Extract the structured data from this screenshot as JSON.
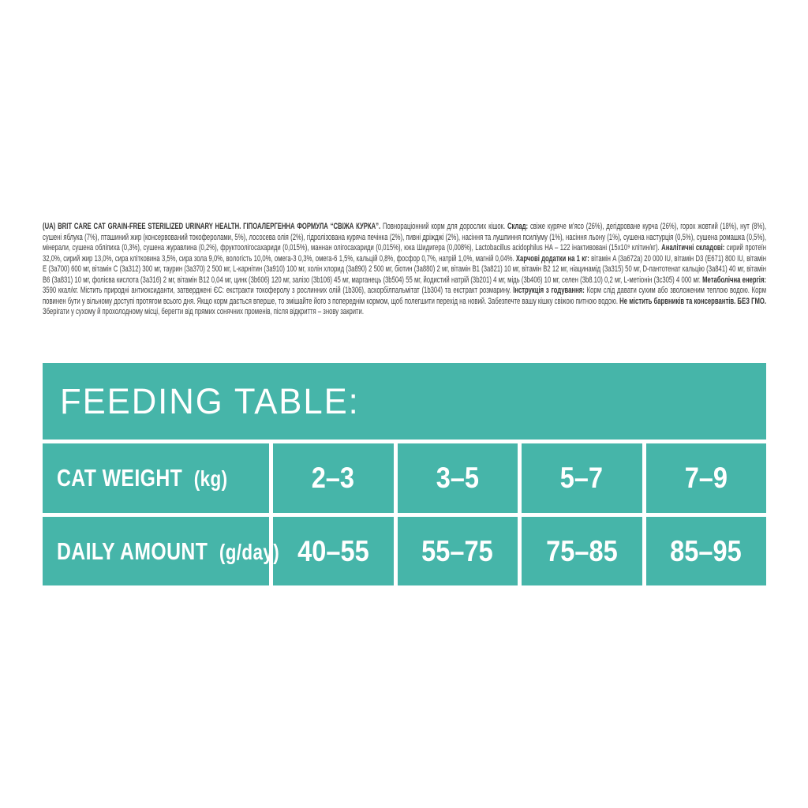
{
  "colors": {
    "teal": "#46b5a9",
    "text": "#3e3e3d",
    "white": "#ffffff"
  },
  "product_description": {
    "segments": [
      {
        "bold": true,
        "text": "(UA) BRIT CARE CAT GRAIN-FREE STERILIZED URINARY HEALTH. ГІПОАЛЕРГЕННА ФОРМУЛА “СВІЖА КУРКА”."
      },
      {
        "bold": false,
        "text": " Повнораціонний корм для дорослих кішок. "
      },
      {
        "bold": true,
        "text": "Склад:"
      },
      {
        "bold": false,
        "text": " свіже куряче м’ясо (26%), дегідроване курча (26%), горох жовтий (18%), нут (8%), сушені яблука (7%), пташиний жир (консервований токоферолами, 5%), лососева олія (2%), гідролізована куряча печінка (2%), пивні дріжджі (2%), насіння та лушпиння псиліуму (1%), насіння льону (1%), сушена настурція (0,5%), сушена ромашка (0,5%), мінерали, сушена обліпиха (0,3%), сушена журавлина (0,2%), фруктоолігосахариди (0,015%), маннан олігосахариди (0,015%), юка Шидигера (0,008%), Lactobacillus acidophilus HA – 122 інактивовані (15x10⁹ клітин/кг). "
      },
      {
        "bold": true,
        "text": "Аналітичні складові:"
      },
      {
        "bold": false,
        "text": " сирий протеїн 32,0%, сирий жир 13,0%, сира клітковина 3,5%, сира зола 9,0%, вологість 10,0%, омега-3 0,3%, омега-6 1,5%, кальцій 0,8%, фосфор 0,7%, натрій 1,0%, магній 0,04%. "
      },
      {
        "bold": true,
        "text": "Харчові додатки на 1 кг:"
      },
      {
        "bold": false,
        "text": " вітамін A (3a672a) 20 000 IU, вітамін D3 (E671) 800 IU, вітамін E (3a700) 600 мг, вітамін C (3a312) 300 мг, таурин (3a370) 2 500 мг, L-карнітин (3a910) 100 мг, холін хлорид (3a890) 2 500 мг, біотин (3a880) 2 мг, вітамін B1 (3a821) 10 мг, вітамін B2 12 мг, ніацинамід (3a315) 50 мг, D-пантотенат кальцію (3a841) 40 мг, вітамін B6 (3a831) 10 мг, фолієва кислота (3a316) 2 мг, вітамін B12 0,04 мг, цинк (3b606) 120 мг, залізо (3b106) 45 мг, марганець (3b504) 55 мг, йодистий натрій (3b201) 4 мг, мідь (3b406) 10 мг, селен (3b8.10) 0,2 мг, L-метіонін (3c305) 4 000 мг. "
      },
      {
        "bold": true,
        "text": "Метаболічна енергія:"
      },
      {
        "bold": false,
        "text": " 3590 ккал/кг. Містить природні антиоксиданти, затверджені ЄС: екстракти токоферолу з рослинних олій (1b306), аскорбілпальмітат (1b304) та екстракт розмарину. "
      },
      {
        "bold": true,
        "text": "Інструкція з годування:"
      },
      {
        "bold": false,
        "text": " Корм слід давати сухим або зволоженим теплою водою. Корм повинен бути у вільному доступі протягом всього дня. Якщо корм дається вперше, то змішайте його з попереднім кормом, щоб полегшити перехід на новий. Забезпечте вашу кішку свіжою питною водою. "
      },
      {
        "bold": true,
        "text": "Не містить барвників та консервантів. БЕЗ ГМО."
      },
      {
        "bold": false,
        "text": " Зберігати у сухому й прохолодному місці, берегти від прямих сонячних променів, після відкриття – знову закрити."
      }
    ]
  },
  "feeding_table": {
    "title": "FEEDING TABLE:",
    "rows": [
      {
        "label": "CAT WEIGHT",
        "unit": "(kg)",
        "values": [
          "2–3",
          "3–5",
          "5–7",
          "7–9"
        ]
      },
      {
        "label": "DAILY AMOUNT",
        "unit": "(g/day)",
        "values": [
          "40–55",
          "55–75",
          "75–85",
          "85–95"
        ]
      }
    ]
  }
}
